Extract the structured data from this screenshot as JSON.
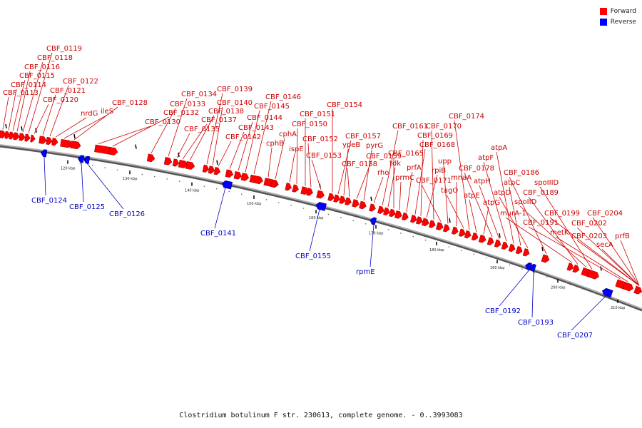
{
  "legend": {
    "items": [
      {
        "label": "Forward",
        "color": "#ff0000"
      },
      {
        "label": "Reverse",
        "color": "#0000ff"
      }
    ]
  },
  "caption": "Clostridium botulinum F str. 230613, complete genome. - 0..3993083",
  "colors": {
    "forward": "#ff0000",
    "reverse": "#0000ff",
    "axis": "#808080"
  },
  "ticks": [
    "120 kbp",
    "130 kbp",
    "140 kbp",
    "150 kbp",
    "160 kbp",
    "170 kbp",
    "180 kbp",
    "190 kbp",
    "200 kbp",
    "210 kbp"
  ],
  "forward_labels": [
    "CBF_0113",
    "CBF_0114",
    "CBF_0115",
    "CBF_0116",
    "CBF_0118",
    "CBF_0119",
    "CBF_0120",
    "CBF_0121",
    "CBF_0122",
    "nrdG",
    "ileS",
    "CBF_0128",
    "CBF_0130",
    "CBF_0132",
    "CBF_0133",
    "CBF_0134",
    "CBF_0135",
    "CBF_0137",
    "CBF_0138",
    "CBF_0139",
    "CBF_0140",
    "CBF_0142",
    "CBF_0143",
    "CBF_0144",
    "CBF_0145",
    "CBF_0146",
    "cphB",
    "cphA",
    "ispE",
    "CBF_0150",
    "CBF_0151",
    "CBF_0152",
    "CBF_0153",
    "CBF_0154",
    "CBF_0157",
    "ypeB",
    "CBF_0158",
    "CBF_0159",
    "pyrG",
    "rho",
    "CBF_0161",
    "tdk",
    "CBF_0165",
    "prmC",
    "prfA",
    "CBF_0168",
    "CBF_0169",
    "rpiB",
    "CBF_0170",
    "CBF_0171",
    "upp",
    "mnaA",
    "tagO",
    "CBF_0174",
    "atpE",
    "atpG",
    "CBF_0178",
    "atpH",
    "atpF",
    "atpA",
    "atpC",
    "atpD",
    "CBF_0186",
    "murA-1",
    "CBF_0189",
    "spoIID",
    "spoIIID",
    "CBF_0191",
    "metK",
    "CBF_0199",
    "CBF_0202",
    "CBF_0203",
    "CBF_0204",
    "secA",
    "prfB"
  ],
  "reverse_labels": [
    "CBF_0124",
    "CBF_0125",
    "CBF_0126",
    "CBF_0141",
    "CBF_0155",
    "rpmE",
    "CBF_0192",
    "CBF_0193",
    "CBF_0207"
  ]
}
